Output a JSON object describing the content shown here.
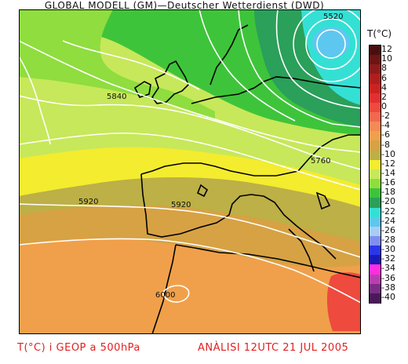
{
  "header": {
    "title": "GLOBAL MODELL (GM)—Deutscher Wetterdienst (DWD)"
  },
  "legend": {
    "title": "T(°C)",
    "entries": [
      {
        "label": "12",
        "color": "#4a0e0e"
      },
      {
        "label": "10",
        "color": "#6e1414"
      },
      {
        "label": "8",
        "color": "#8e1b1b"
      },
      {
        "label": "6",
        "color": "#b01e1e"
      },
      {
        "label": "4",
        "color": "#cc2222"
      },
      {
        "label": "2",
        "color": "#e03030"
      },
      {
        "label": "0",
        "color": "#ee4a3e"
      },
      {
        "label": "-2",
        "color": "#f2684f"
      },
      {
        "label": "-4",
        "color": "#f48a55"
      },
      {
        "label": "-6",
        "color": "#f0a04a"
      },
      {
        "label": "-8",
        "color": "#d6a244"
      },
      {
        "label": "-10",
        "color": "#bcb046"
      },
      {
        "label": "-12",
        "color": "#f4ec2e"
      },
      {
        "label": "-14",
        "color": "#c7e85a"
      },
      {
        "label": "-16",
        "color": "#8fdd3e"
      },
      {
        "label": "-18",
        "color": "#3ec43a"
      },
      {
        "label": "-20",
        "color": "#2aa05a"
      },
      {
        "label": "-22",
        "color": "#34e0d4"
      },
      {
        "label": "-24",
        "color": "#5ec7f0"
      },
      {
        "label": "-26",
        "color": "#a9cdf4"
      },
      {
        "label": "-28",
        "color": "#7f8ff0"
      },
      {
        "label": "-30",
        "color": "#2b36e8"
      },
      {
        "label": "-32",
        "color": "#1a1ab8"
      },
      {
        "label": "-34",
        "color": "#ff2ee0"
      },
      {
        "label": "-36",
        "color": "#b93fb0"
      },
      {
        "label": "-38",
        "color": "#7c2d86"
      },
      {
        "label": "-40",
        "color": "#4a1a58"
      }
    ]
  },
  "map": {
    "contour_labels": [
      "5520",
      "5760",
      "5840",
      "5920",
      "5920",
      "6000"
    ]
  },
  "footer": {
    "left": "T(°C) i GEOP a 500hPa",
    "right": "ANÀLISI 12UTC 21 JUL 2005"
  }
}
